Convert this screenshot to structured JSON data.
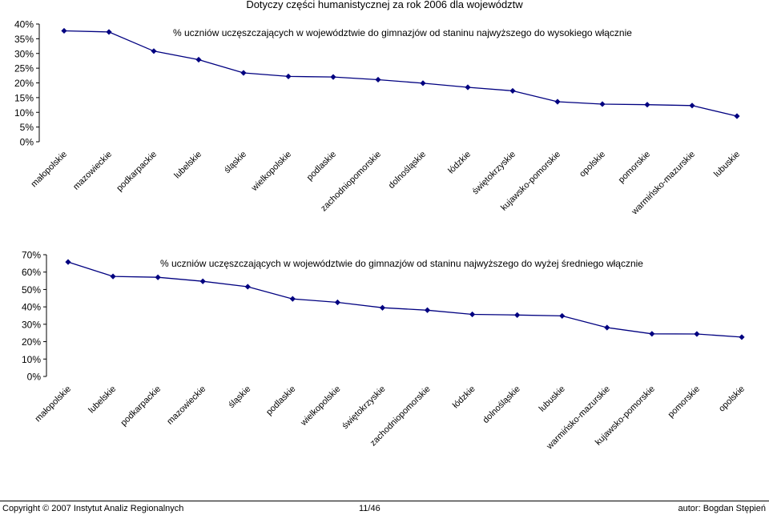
{
  "page_title": "Dotyczy części humanistycznej za rok 2006 dla województw",
  "footer": {
    "copyright": "Copyright © 2007 Instytut Analiz Regionalnych",
    "page": "11/46",
    "author": "autor: Bogdan Stępień"
  },
  "colors": {
    "line": "#000080",
    "marker": "#000080",
    "axis": "#000000"
  },
  "chart_data": [
    {
      "type": "line",
      "title": "% uczniów uczęszczających w województwie do gimnazjów od staninu najwyższego do wysokiego włącznie",
      "categories": [
        "małopolskie",
        "mazowieckie",
        "podkarpackie",
        "lubelskie",
        "śląskie",
        "wielkopolskie",
        "podlaskie",
        "zachodniopomorskie",
        "dolnośląskie",
        "łódzkie",
        "świętokrzyskie",
        "kujawsko-pomorskie",
        "opolskie",
        "pomorskie",
        "warmińsko-mazurskie",
        "lubuskie"
      ],
      "values": [
        37.7,
        37.3,
        30.8,
        27.9,
        23.4,
        22.2,
        22.0,
        21.1,
        19.9,
        18.5,
        17.3,
        13.6,
        12.8,
        12.6,
        12.3,
        8.7
      ],
      "ylim": [
        0,
        40
      ],
      "yticks": [
        "0%",
        "5%",
        "10%",
        "15%",
        "20%",
        "25%",
        "30%",
        "35%",
        "40%"
      ],
      "ytick_values": [
        0,
        5,
        10,
        15,
        20,
        25,
        30,
        35,
        40
      ],
      "grid": false,
      "legend": "none"
    },
    {
      "type": "line",
      "title": "% uczniów uczęszczających w województwie do gimnazjów od staninu najwyższego do wyżej średniego włącznie",
      "categories": [
        "małopolskie",
        "lubelskie",
        "podkarpackie",
        "mazowieckie",
        "śląskie",
        "podlaskie",
        "wielkopolskie",
        "świętokrzyskie",
        "zachodniopomorskie",
        "łódzkie",
        "dolnośląskie",
        "lubuskie",
        "warmińsko-mazurskie",
        "kujawsko-pomorskie",
        "pomorskie",
        "opolskie"
      ],
      "values": [
        65.8,
        57.5,
        57.0,
        54.7,
        51.6,
        44.6,
        42.6,
        39.5,
        38.1,
        35.7,
        35.3,
        34.8,
        28.1,
        24.5,
        24.4,
        22.6
      ],
      "ylim": [
        0,
        70
      ],
      "yticks": [
        "0%",
        "10%",
        "20%",
        "30%",
        "40%",
        "50%",
        "60%",
        "70%"
      ],
      "ytick_values": [
        0,
        10,
        20,
        30,
        40,
        50,
        60,
        70
      ],
      "grid": false,
      "legend": "none"
    }
  ]
}
